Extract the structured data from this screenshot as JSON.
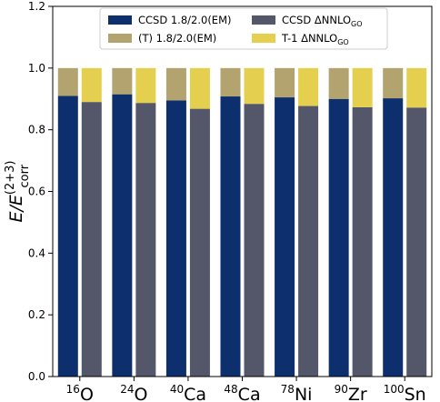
{
  "chart_data": {
    "type": "bar",
    "stacked": true,
    "categories": [
      {
        "mass": "16",
        "element": "O"
      },
      {
        "mass": "24",
        "element": "O"
      },
      {
        "mass": "40",
        "element": "Ca"
      },
      {
        "mass": "48",
        "element": "Ca"
      },
      {
        "mass": "78",
        "element": "Ni"
      },
      {
        "mass": "90",
        "element": "Zr"
      },
      {
        "mass": "100",
        "element": "Sn"
      }
    ],
    "groups": [
      {
        "name": "1.8/2.0(EM)",
        "series": [
          {
            "name": "CCSD 1.8/2.0(EM)",
            "color": "#0d2f6e",
            "values": [
              0.91,
              0.915,
              0.895,
              0.908,
              0.905,
              0.9,
              0.902
            ]
          },
          {
            "name": "(T) 1.8/2.0(EM)",
            "color": "#b2a36f",
            "values": [
              0.09,
              0.085,
              0.105,
              0.092,
              0.095,
              0.1,
              0.098
            ]
          }
        ]
      },
      {
        "name": "ΔNNLO_GO",
        "series": [
          {
            "name": "CCSD ΔNNLO",
            "sub": "GO",
            "color": "#545769",
            "values": [
              0.89,
              0.887,
              0.868,
              0.884,
              0.877,
              0.873,
              0.872
            ]
          },
          {
            "name": "T-1 ΔNNLO",
            "sub": "GO",
            "color": "#e5cf4f",
            "values": [
              0.11,
              0.113,
              0.132,
              0.116,
              0.123,
              0.127,
              0.128
            ]
          }
        ]
      }
    ],
    "ylabel": {
      "main": "E/E",
      "sub": "corr",
      "sup": "(2+3)"
    },
    "ylim": [
      0,
      1.2
    ],
    "yticks": [
      "0.0",
      "0.2",
      "0.4",
      "0.6",
      "0.8",
      "1.0",
      "1.2"
    ],
    "grid": false,
    "legend": {
      "placement": "top-center",
      "entries": [
        {
          "label": "CCSD 1.8/2.0(EM)",
          "sub": "",
          "color": "#0d2f6e"
        },
        {
          "label": "CCSD ΔNNLO",
          "sub": "GO",
          "color": "#545769"
        },
        {
          "label": "(T) 1.8/2.0(EM)",
          "sub": "",
          "color": "#b2a36f"
        },
        {
          "label": "T-1 ΔNNLO",
          "sub": "GO",
          "color": "#e5cf4f"
        }
      ]
    }
  }
}
